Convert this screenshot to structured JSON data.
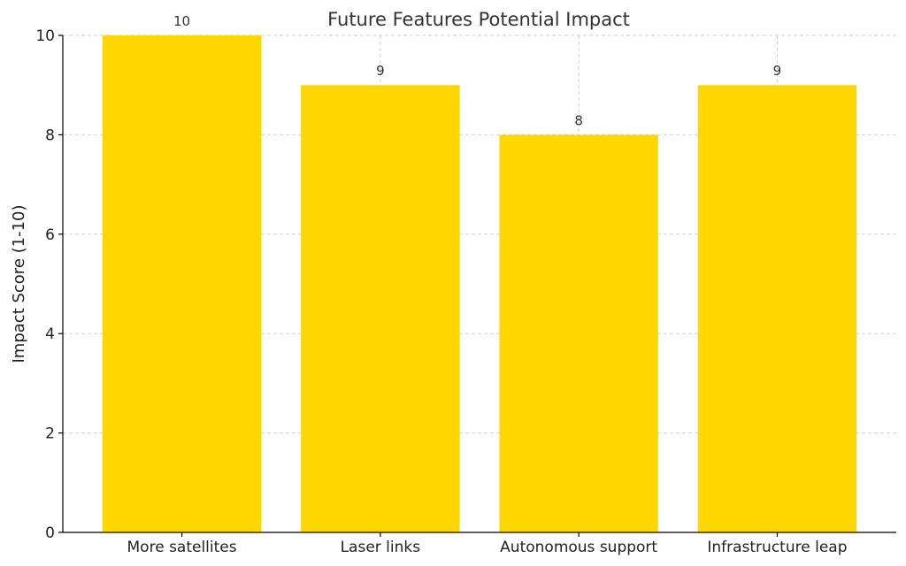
{
  "chart_data": {
    "type": "bar",
    "title": "Future Features Potential Impact",
    "xlabel": "",
    "ylabel": "Impact Score (1-10)",
    "categories": [
      "More satellites",
      "Laser links",
      "Autonomous support",
      "Infrastructure leap"
    ],
    "values": [
      10,
      9,
      8,
      9
    ],
    "data_labels": [
      "10",
      "9",
      "8",
      "9"
    ],
    "ylim": [
      0,
      10
    ],
    "yticks": [
      0,
      2,
      4,
      6,
      8,
      10
    ],
    "grid": true,
    "bar_color": "#FFD700"
  }
}
